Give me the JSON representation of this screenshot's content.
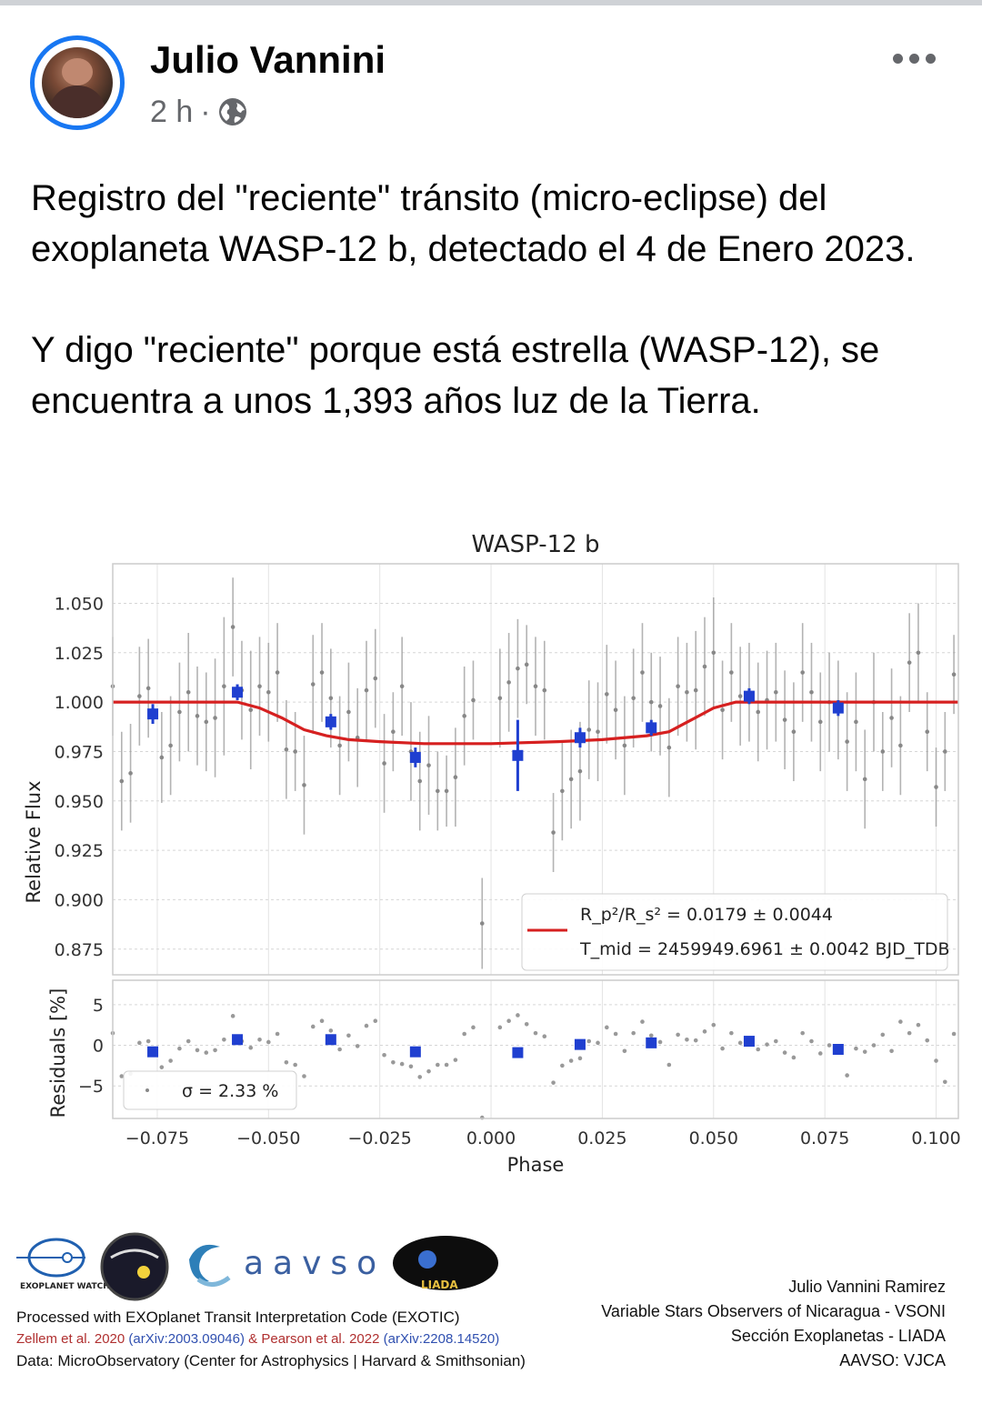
{
  "post": {
    "author": "Julio Vannini",
    "time": "2 h",
    "separator": "·",
    "privacy_icon": "globe-icon",
    "more_icon": "more-options-icon",
    "paragraphs": [
      "Registro del \"reciente\" tránsito (micro-eclipse) del exoplaneta WASP-12 b, detectado el 4 de Enero 2023.",
      "Y digo \"reciente\" porque está estrella (WASP-12), se encuentra a unos 1,393 años luz de la Tierra."
    ]
  },
  "chart_data": {
    "type": "scatter",
    "title": "WASP-12 b",
    "xlabel": "Phase",
    "ylabel": "Relative Flux",
    "ylabel_residuals": "Residuals [%]",
    "xlim": [
      -0.085,
      0.105
    ],
    "ylim": [
      0.862,
      1.07
    ],
    "residual_ylim": [
      -9,
      8
    ],
    "xticks": [
      "−0.075",
      "−0.050",
      "−0.025",
      "0.000",
      "0.025",
      "0.050",
      "0.075",
      "0.100"
    ],
    "xtick_values": [
      -0.075,
      -0.05,
      -0.025,
      0.0,
      0.025,
      0.05,
      0.075,
      0.1
    ],
    "yticks": [
      "1.050",
      "1.025",
      "1.000",
      "0.975",
      "0.950",
      "0.925",
      "0.900",
      "0.875"
    ],
    "ytick_values": [
      1.05,
      1.025,
      1.0,
      0.975,
      0.95,
      0.925,
      0.9,
      0.875
    ],
    "residual_yticks": [
      "5",
      "0",
      "−5"
    ],
    "residual_ytick_values": [
      5,
      0,
      -5
    ],
    "legend_fit": "R_p²/R_s² = 0.0179 ± 0.0044",
    "legend_tmid": "T_mid = 2459949.6961 ± 0.0042 BJD_TDB",
    "legend_sigma": "σ = 2.33 %",
    "grid": true,
    "colors": {
      "binned": "#1f3fd0",
      "model": "#d62020",
      "raw": "#888888"
    },
    "model": {
      "name": "model",
      "x": [
        -0.085,
        -0.057,
        -0.052,
        -0.047,
        -0.042,
        -0.037,
        -0.032,
        -0.025,
        -0.015,
        0.0,
        0.015,
        0.025,
        0.035,
        0.04,
        0.045,
        0.05,
        0.055,
        0.06,
        0.105
      ],
      "y": [
        1.0,
        1.0,
        0.997,
        0.992,
        0.986,
        0.983,
        0.981,
        0.98,
        0.979,
        0.979,
        0.98,
        0.981,
        0.983,
        0.985,
        0.991,
        0.997,
        1.0,
        1.0,
        1.0
      ]
    },
    "binned": {
      "x": [
        -0.076,
        -0.057,
        -0.036,
        -0.017,
        0.006,
        0.02,
        0.036,
        0.058,
        0.078
      ],
      "y": [
        0.994,
        1.005,
        0.99,
        0.972,
        0.973,
        0.982,
        0.987,
        1.003,
        0.997
      ],
      "err": [
        0.005,
        0.004,
        0.004,
        0.005,
        0.018,
        0.005,
        0.004,
        0.004,
        0.004
      ],
      "residuals": [
        -0.8,
        0.7,
        0.7,
        -0.8,
        -0.9,
        0.1,
        0.3,
        0.5,
        -0.5
      ]
    },
    "raw": {
      "x": [
        -0.085,
        -0.083,
        -0.081,
        -0.079,
        -0.077,
        -0.074,
        -0.072,
        -0.07,
        -0.068,
        -0.066,
        -0.064,
        -0.062,
        -0.06,
        -0.058,
        -0.056,
        -0.054,
        -0.052,
        -0.05,
        -0.048,
        -0.046,
        -0.044,
        -0.042,
        -0.04,
        -0.038,
        -0.036,
        -0.034,
        -0.032,
        -0.03,
        -0.028,
        -0.026,
        -0.024,
        -0.022,
        -0.02,
        -0.018,
        -0.016,
        -0.014,
        -0.012,
        -0.01,
        -0.008,
        -0.006,
        -0.004,
        -0.002,
        0.002,
        0.004,
        0.006,
        0.008,
        0.01,
        0.012,
        0.014,
        0.016,
        0.018,
        0.02,
        0.022,
        0.024,
        0.026,
        0.028,
        0.03,
        0.032,
        0.034,
        0.036,
        0.038,
        0.04,
        0.042,
        0.044,
        0.046,
        0.048,
        0.05,
        0.052,
        0.054,
        0.056,
        0.058,
        0.06,
        0.062,
        0.064,
        0.066,
        0.068,
        0.07,
        0.072,
        0.074,
        0.076,
        0.078,
        0.08,
        0.082,
        0.084,
        0.086,
        0.088,
        0.09,
        0.092,
        0.094,
        0.096,
        0.098,
        0.1,
        0.102,
        0.104
      ],
      "y": [
        1.008,
        0.96,
        0.964,
        1.003,
        1.007,
        0.972,
        0.978,
        0.995,
        1.005,
        0.993,
        0.99,
        0.992,
        1.008,
        1.038,
        1.006,
        0.996,
        1.008,
        1.005,
        1.015,
        0.976,
        0.975,
        0.958,
        1.009,
        1.015,
        1.002,
        0.978,
        0.995,
        0.982,
        1.006,
        1.012,
        0.969,
        0.985,
        1.008,
        0.975,
        0.96,
        0.968,
        0.955,
        0.955,
        0.962,
        0.993,
        1.001,
        0.888,
        1.002,
        1.01,
        1.017,
        1.019,
        1.008,
        1.006,
        0.934,
        0.955,
        0.961,
        0.965,
        0.986,
        0.985,
        1.004,
        0.996,
        0.978,
        1.002,
        1.015,
        1.0,
        0.998,
        0.977,
        1.008,
        1.005,
        1.006,
        1.018,
        1.025,
        0.996,
        1.015,
        1.003,
        1.005,
        0.995,
        1.001,
        1.005,
        0.991,
        0.985,
        1.015,
        1.005,
        0.99,
        1.0,
        0.996,
        0.98,
        0.99,
        0.961,
        1.0,
        0.975,
        0.992,
        0.978,
        1.02,
        1.025,
        0.985,
        0.957,
        0.975,
        1.014
      ],
      "err": [
        0.025,
        0.025,
        0.025,
        0.025,
        0.025,
        0.023,
        0.025,
        0.025,
        0.03,
        0.025,
        0.025,
        0.03,
        0.035,
        0.025,
        0.025,
        0.03,
        0.025,
        0.025,
        0.025,
        0.025,
        0.02,
        0.025,
        0.025,
        0.025,
        0.025,
        0.025,
        0.025,
        0.025,
        0.025,
        0.025,
        0.025,
        0.02,
        0.025,
        0.025,
        0.025,
        0.025,
        0.02,
        0.018,
        0.025,
        0.025,
        0.02,
        0.023,
        0.025,
        0.025,
        0.025,
        0.02,
        0.025,
        0.025,
        0.02,
        0.025,
        0.025,
        0.025,
        0.025,
        0.025,
        0.025,
        0.025,
        0.025,
        0.025,
        0.025,
        0.025,
        0.025,
        0.025,
        0.025,
        0.025,
        0.03,
        0.025,
        0.028,
        0.025,
        0.025,
        0.025,
        0.025,
        0.025,
        0.025,
        0.025,
        0.025,
        0.025,
        0.025,
        0.025,
        0.025,
        0.025,
        0.025,
        0.025,
        0.025,
        0.025,
        0.025,
        0.02,
        0.025,
        0.025,
        0.025,
        0.025,
        0.02,
        0.02,
        0.02,
        0.02
      ],
      "residuals": [
        1.5,
        -3.8,
        -3.5,
        0.3,
        0.5,
        -2.7,
        -1.9,
        -0.4,
        0.5,
        -0.6,
        -0.9,
        -0.6,
        0.7,
        3.6,
        0.5,
        -0.3,
        0.7,
        0.4,
        1.4,
        -2.1,
        -2.4,
        -3.8,
        2.3,
        3.0,
        1.8,
        -0.5,
        1.2,
        -0.1,
        2.4,
        3.0,
        -1.2,
        -2.1,
        -2.3,
        -2.6,
        -3.9,
        -3.2,
        -2.4,
        -2.4,
        -1.8,
        1.4,
        2.2,
        -8.9,
        2.2,
        3.0,
        3.7,
        2.6,
        1.5,
        1.1,
        -4.6,
        -2.5,
        -1.9,
        -1.6,
        0.5,
        0.3,
        2.2,
        1.4,
        -0.7,
        1.5,
        2.9,
        1.2,
        0.4,
        -2.4,
        1.3,
        0.7,
        0.6,
        1.7,
        2.5,
        -0.4,
        1.5,
        0.3,
        0.5,
        -0.5,
        0.1,
        0.5,
        -0.9,
        -1.5,
        1.5,
        0.5,
        -1.0,
        0.0,
        -0.4,
        -3.7,
        -0.4,
        -0.8,
        0.0,
        1.3,
        -0.7,
        2.9,
        1.5,
        2.5,
        0.6,
        -1.9,
        -4.5,
        1.4
      ]
    }
  },
  "credits": {
    "logos": [
      "exoplanet-watch-logo",
      "microobservatory-logo",
      "aavso-logo",
      "liada-logo"
    ],
    "exoplanet_watch": "EXOPLANET WATCH",
    "aavso": "aavso",
    "liada": "LIADA",
    "line1": "Processed with EXOplanet Transit Interpretation Code (EXOTIC)",
    "ref_a": "Zellem et al. 2020",
    "ref_a_link": "(arXiv:2003.09046)",
    "ref_amp": "&",
    "ref_b": "Pearson et al. 2022",
    "ref_b_link": "(arXiv:2208.14520)",
    "line3": "Data: MicroObservatory (Center for Astrophysics | Harvard & Smithsonian)",
    "right": [
      "Julio Vannini Ramirez",
      "Variable Stars Observers of Nicaragua - VSONI",
      "Sección Exoplanetas - LIADA",
      "AAVSO: VJCA"
    ]
  }
}
